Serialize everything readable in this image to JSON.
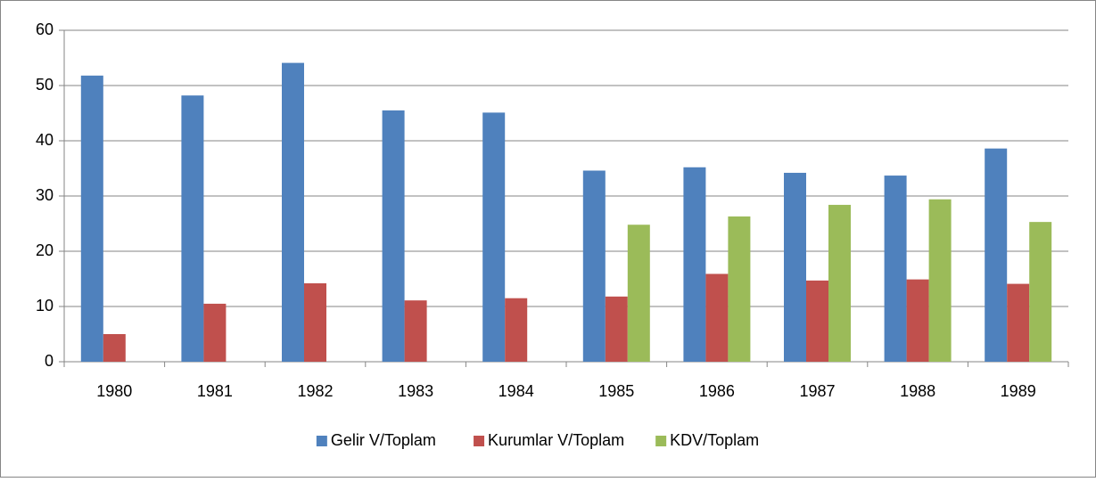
{
  "chart_data": {
    "type": "bar",
    "categories": [
      "1980",
      "1981",
      "1982",
      "1983",
      "1984",
      "1985",
      "1986",
      "1987",
      "1988",
      "1989"
    ],
    "series": [
      {
        "name": "Gelir V/Toplam",
        "color": "#4f81bd",
        "values": [
          51.8,
          48.2,
          54.1,
          45.5,
          45.1,
          34.6,
          35.2,
          34.2,
          33.7,
          38.6
        ]
      },
      {
        "name": "Kurumlar V/Toplam",
        "color": "#c0504d",
        "values": [
          5.0,
          10.5,
          14.2,
          11.1,
          11.5,
          11.8,
          15.9,
          14.7,
          14.9,
          14.1
        ]
      },
      {
        "name": "KDV/Toplam",
        "color": "#9bbb59",
        "values": [
          null,
          null,
          null,
          null,
          null,
          24.8,
          26.3,
          28.4,
          29.4,
          25.3
        ]
      }
    ],
    "ylim": [
      0,
      60
    ],
    "yticks": [
      0,
      10,
      20,
      30,
      40,
      50,
      60
    ],
    "grid": true,
    "legend": "bottom"
  }
}
